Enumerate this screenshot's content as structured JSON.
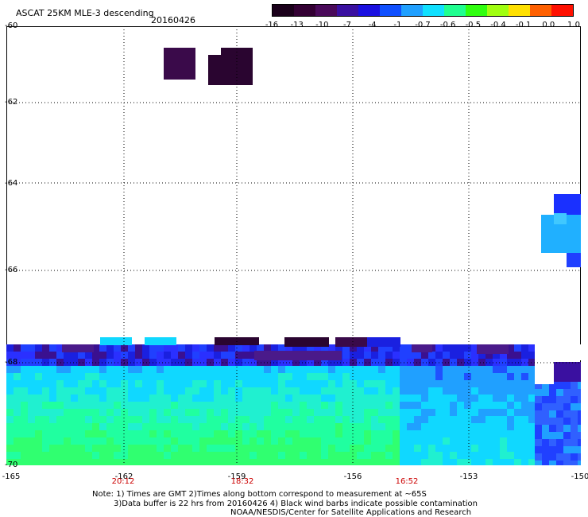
{
  "header": {
    "title": "ASCAT 25KM MLE-3 descending",
    "date": "20160426"
  },
  "colorbar": {
    "labels": [
      "-16",
      "-13",
      "-10",
      "-7",
      "-4",
      "-1",
      "-0.7",
      "-0.6",
      "-0.5",
      "-0.4",
      "-0.1",
      "0.0",
      "1.0"
    ],
    "colors": [
      "#1a001a",
      "#330033",
      "#4a0a5a",
      "#3a10a0",
      "#1a10e0",
      "#1050ff",
      "#20a0ff",
      "#10e0ff",
      "#20ff90",
      "#30ff10",
      "#a0ff10",
      "#ffe000",
      "#ff6000",
      "#ff1000"
    ]
  },
  "axes": {
    "y_labels": [
      "-60",
      "-62",
      "-64",
      "-66",
      "-68",
      "-70"
    ],
    "x_labels": [
      "-165",
      "-162",
      "-159",
      "-156",
      "-153",
      "-150"
    ]
  },
  "times": [
    "20:12",
    "18:32",
    "16:52"
  ],
  "notes": [
    "Note: 1) Times are GMT 2)Times along bottom correspond to measurement at ~65S",
    "3)Data buffer is 22 hrs from 20160426 4) Black wind barbs indicate possible contamination",
    "NOAA/NESDIS/Center for Satellite Applications and Research"
  ]
}
